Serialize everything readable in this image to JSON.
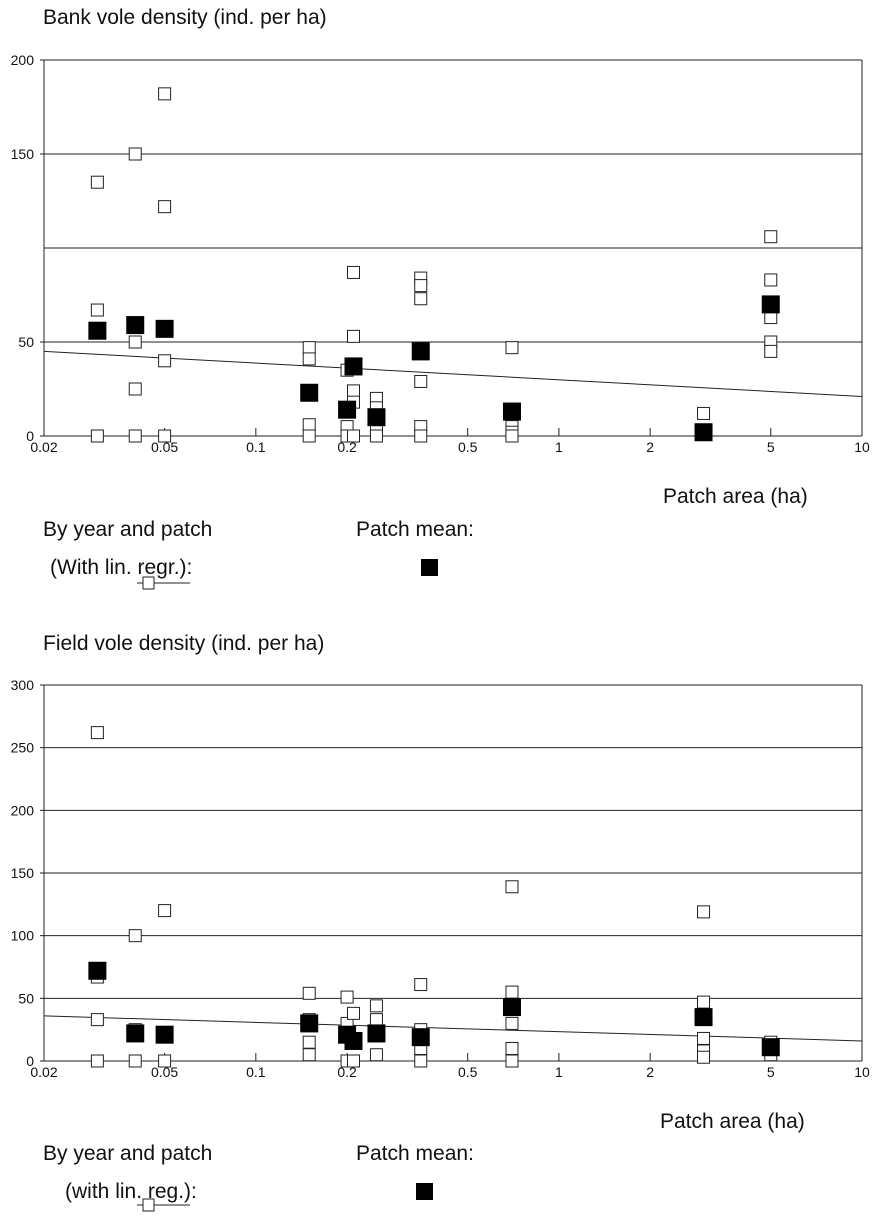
{
  "charts": [
    {
      "title": "Bank vole density (ind. per ha)",
      "xlabel": "Patch area (ha)",
      "legend": {
        "by_year_line1": "By year and patch",
        "by_year_line2_pre": "(With ",
        "by_year_line2_link": "lin",
        "by_year_line2_post": ". regr.):",
        "patch_mean": "Patch mean:"
      }
    },
    {
      "title": "Field vole density (ind. per ha)",
      "xlabel": "Patch area (ha)",
      "legend": {
        "by_year_line1": "By year and patch",
        "by_year_line2_pre": "(with ",
        "by_year_line2_link": "lin",
        "by_year_line2_post": ". reg.):",
        "patch_mean": "Patch mean:"
      }
    }
  ],
  "chart_data": [
    {
      "type": "scatter",
      "title": "Bank vole density (ind. per ha)",
      "xlabel": "Patch area (ha)",
      "ylabel": "Bank vole density (ind. per ha)",
      "xscale": "log",
      "xlim": [
        0.02,
        10
      ],
      "ylim": [
        0,
        200
      ],
      "xticks": [
        0.02,
        0.05,
        0.1,
        0.2,
        0.5,
        1,
        2,
        5,
        10
      ],
      "xtick_labels": [
        "0.02",
        "0.05",
        "0.1",
        "0.2",
        "0.5",
        "1",
        "2",
        "5",
        "10"
      ],
      "yticks": [
        0,
        50,
        150,
        200
      ],
      "ytick_labels": [
        "0",
        "50",
        "150",
        "200"
      ],
      "hlines": [
        50,
        100,
        150
      ],
      "series": [
        {
          "name": "By year and patch",
          "marker": "open-square",
          "x": [
            0.03,
            0.03,
            0.03,
            0.04,
            0.04,
            0.04,
            0.04,
            0.05,
            0.05,
            0.05,
            0.05,
            0.15,
            0.15,
            0.15,
            0.15,
            0.2,
            0.2,
            0.2,
            0.21,
            0.21,
            0.21,
            0.21,
            0.21,
            0.25,
            0.25,
            0.25,
            0.25,
            0.35,
            0.35,
            0.35,
            0.35,
            0.35,
            0.35,
            0.7,
            0.7,
            0.7,
            0.7,
            0.7,
            3,
            5,
            5,
            5,
            5,
            5
          ],
          "y": [
            135,
            67,
            0,
            150,
            50,
            25,
            0,
            182,
            122,
            40,
            0,
            47,
            41,
            6,
            0,
            35,
            5,
            0,
            87,
            53,
            24,
            18,
            0,
            20,
            15,
            5,
            0,
            84,
            80,
            73,
            29,
            5,
            0,
            47,
            10,
            5,
            2,
            0,
            12,
            106,
            83,
            63,
            50,
            45
          ],
          "regression": {
            "x": [
              0.02,
              10
            ],
            "y": [
              45,
              21
            ]
          }
        },
        {
          "name": "Patch mean",
          "marker": "filled-square",
          "x": [
            0.03,
            0.04,
            0.05,
            0.15,
            0.2,
            0.21,
            0.25,
            0.35,
            0.7,
            3,
            5
          ],
          "y": [
            56,
            59,
            57,
            23,
            14,
            37,
            10,
            45,
            13,
            2,
            70
          ]
        }
      ]
    },
    {
      "type": "scatter",
      "title": "Field vole density (ind. per ha)",
      "xlabel": "Patch area (ha)",
      "ylabel": "Field vole density (ind. per ha)",
      "xscale": "log",
      "xlim": [
        0.02,
        10
      ],
      "ylim": [
        0,
        300
      ],
      "xticks": [
        0.02,
        0.05,
        0.1,
        0.2,
        0.5,
        1,
        2,
        5,
        10
      ],
      "xtick_labels": [
        "0.02",
        "0.05",
        "0.1",
        "0.2",
        "0.5",
        "1",
        "2",
        "5",
        "10"
      ],
      "yticks": [
        0,
        50,
        100,
        150,
        200,
        250,
        300
      ],
      "ytick_labels": [
        "0",
        "50",
        "100",
        "150",
        "200",
        "250",
        "300"
      ],
      "hlines": [
        50,
        100,
        150,
        200,
        250
      ],
      "series": [
        {
          "name": "By year and patch",
          "marker": "open-square",
          "x": [
            0.03,
            0.03,
            0.03,
            0.03,
            0.04,
            0.04,
            0.04,
            0.05,
            0.05,
            0.05,
            0.15,
            0.15,
            0.15,
            0.15,
            0.2,
            0.2,
            0.2,
            0.21,
            0.21,
            0.21,
            0.25,
            0.25,
            0.25,
            0.25,
            0.35,
            0.35,
            0.35,
            0.35,
            0.7,
            0.7,
            0.7,
            0.7,
            0.7,
            3,
            3,
            3,
            3,
            3,
            5,
            5
          ],
          "y": [
            262,
            67,
            33,
            0,
            100,
            25,
            0,
            120,
            20,
            0,
            54,
            33,
            15,
            5,
            51,
            30,
            0,
            38,
            15,
            0,
            44,
            33,
            20,
            5,
            61,
            25,
            10,
            0,
            139,
            55,
            30,
            10,
            0,
            119,
            47,
            18,
            8,
            3,
            15,
            5
          ],
          "regression": {
            "x": [
              0.02,
              10
            ],
            "y": [
              36,
              16
            ]
          }
        },
        {
          "name": "Patch mean",
          "marker": "filled-square",
          "x": [
            0.03,
            0.04,
            0.05,
            0.15,
            0.2,
            0.21,
            0.25,
            0.35,
            0.7,
            3,
            5
          ],
          "y": [
            72,
            22,
            21,
            30,
            21,
            16,
            22,
            19,
            43,
            35,
            11
          ]
        }
      ]
    }
  ]
}
